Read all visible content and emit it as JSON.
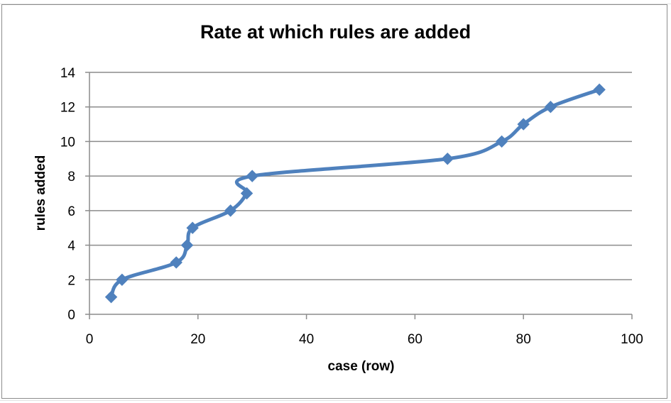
{
  "chart_data": {
    "type": "scatter",
    "title": "Rate at which rules are added",
    "xlabel": "case (row)",
    "ylabel": "rules added",
    "xlim": [
      0,
      100
    ],
    "ylim": [
      0,
      14
    ],
    "xticks": [
      0,
      20,
      40,
      60,
      80,
      100
    ],
    "yticks": [
      0,
      2,
      4,
      6,
      8,
      10,
      12,
      14
    ],
    "grid": "horizontal",
    "legend": "none",
    "line_style": "smoothed",
    "marker": "diamond",
    "color": "#4f81bd",
    "series": [
      {
        "x": [
          4,
          6,
          16,
          18,
          19,
          26,
          29,
          30,
          66,
          76,
          80,
          85,
          94
        ],
        "y": [
          1,
          2,
          3,
          4,
          5,
          6,
          7,
          8,
          9,
          10,
          11,
          12,
          13
        ]
      }
    ]
  }
}
